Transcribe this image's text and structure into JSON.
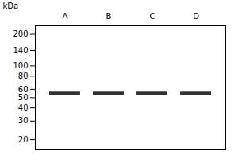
{
  "chart_data": {
    "type": "gel",
    "y_label": "kDa",
    "categories": [
      "A",
      "B",
      "C",
      "D"
    ],
    "values": [
      55,
      55,
      55,
      55
    ],
    "color": "#333333",
    "log": "y",
    "ylim": [
      16,
      240
    ],
    "yticks": [
      200,
      140,
      100,
      80,
      60,
      50,
      40,
      30,
      20
    ]
  }
}
